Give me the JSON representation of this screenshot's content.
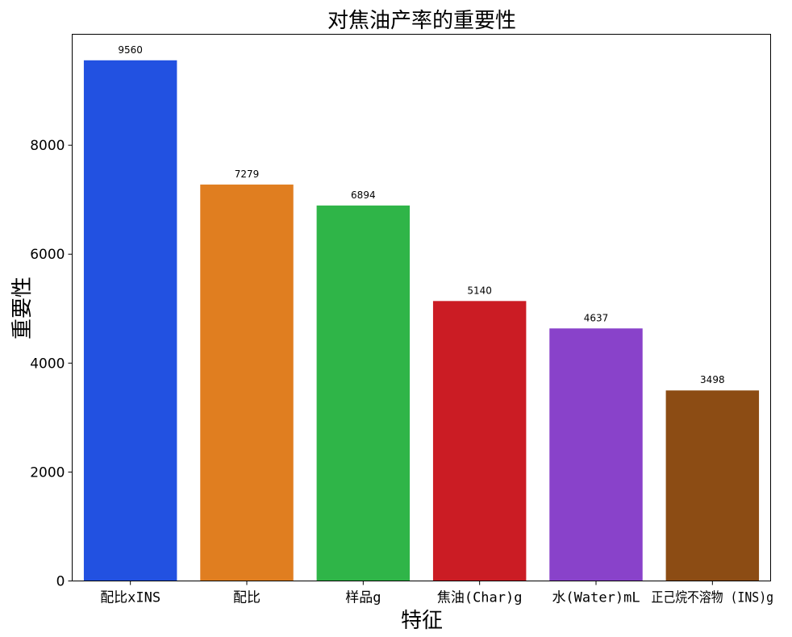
{
  "chart_data": {
    "type": "bar",
    "title": "对焦油产率的重要性",
    "xlabel": "特征",
    "ylabel": "重要性",
    "categories": [
      "配比xINS",
      "配比",
      "样品g",
      "焦油(Char)g",
      "水(Water)mL",
      "正己烷不溶物 (INS)g"
    ],
    "values": [
      9560,
      7279,
      6894,
      5140,
      4637,
      3498
    ],
    "data_labels": [
      "9560",
      "7279",
      "6894",
      "5140",
      "4637",
      "3498"
    ],
    "colors": [
      "#2251e1",
      "#e07e20",
      "#2fb548",
      "#cb1c24",
      "#8942ca",
      "#8c4c14"
    ],
    "yticks": [
      0,
      2000,
      4000,
      6000,
      8000
    ],
    "ytick_labels": [
      "0",
      "2000",
      "4000",
      "6000",
      "8000"
    ],
    "ylim": [
      0,
      10038
    ],
    "grid": false,
    "legend": "none"
  }
}
